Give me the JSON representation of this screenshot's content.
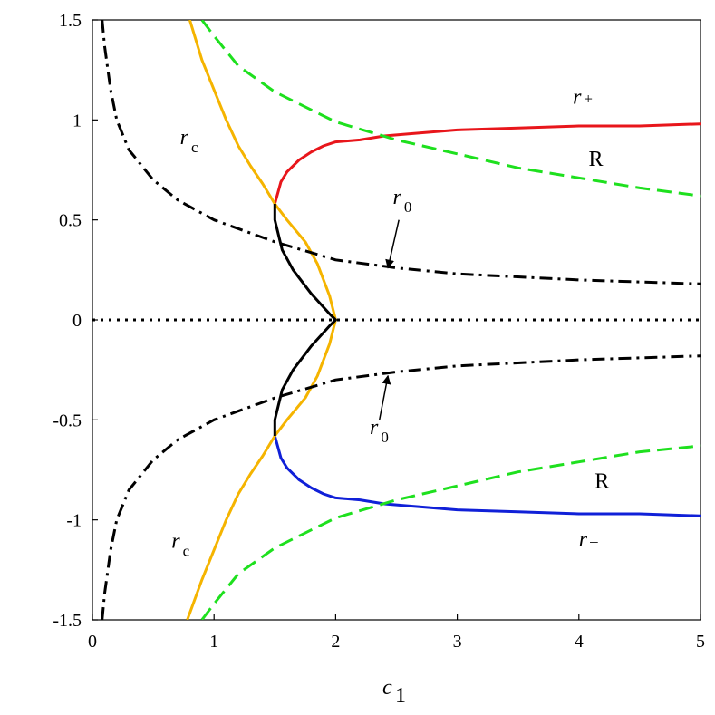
{
  "chart_data": {
    "type": "line",
    "title": "",
    "xlabel": "c",
    "xlabel_subscript": "1",
    "ylabel": "",
    "xlim": [
      0,
      5
    ],
    "ylim": [
      -1.5,
      1.5
    ],
    "grid": false,
    "legend": "none",
    "x_ticks": [
      {
        "value": 0,
        "label": "0"
      },
      {
        "value": 1,
        "label": "1"
      },
      {
        "value": 2,
        "label": "2"
      },
      {
        "value": 3,
        "label": "3"
      },
      {
        "value": 4,
        "label": "4"
      },
      {
        "value": 5,
        "label": "5"
      }
    ],
    "y_ticks": [
      {
        "value": 1.5,
        "label": "1.5"
      },
      {
        "value": 1,
        "label": "1"
      },
      {
        "value": 0.5,
        "label": "0.5"
      },
      {
        "value": 0,
        "label": "0"
      },
      {
        "value": -0.5,
        "label": "-0.5"
      },
      {
        "value": -1,
        "label": "-1"
      },
      {
        "value": -1.5,
        "label": "-1.5"
      }
    ],
    "series": [
      {
        "key": "r_plus",
        "color": "#e8161b",
        "style": "solid",
        "points": [
          [
            1.5,
            0.58
          ],
          [
            1.55,
            0.69
          ],
          [
            1.6,
            0.74
          ],
          [
            1.7,
            0.8
          ],
          [
            1.8,
            0.84
          ],
          [
            1.9,
            0.87
          ],
          [
            2.0,
            0.89
          ],
          [
            2.2,
            0.9
          ],
          [
            2.4,
            0.92
          ],
          [
            2.6,
            0.93
          ],
          [
            3.0,
            0.95
          ],
          [
            3.5,
            0.96
          ],
          [
            4.0,
            0.97
          ],
          [
            4.5,
            0.97
          ],
          [
            5.0,
            0.98
          ]
        ]
      },
      {
        "key": "r_minus",
        "color": "#1020d8",
        "style": "solid",
        "points": [
          [
            1.5,
            -0.58
          ],
          [
            1.55,
            -0.69
          ],
          [
            1.6,
            -0.74
          ],
          [
            1.7,
            -0.8
          ],
          [
            1.8,
            -0.84
          ],
          [
            1.9,
            -0.87
          ],
          [
            2.0,
            -0.89
          ],
          [
            2.2,
            -0.9
          ],
          [
            2.4,
            -0.92
          ],
          [
            2.6,
            -0.93
          ],
          [
            3.0,
            -0.95
          ],
          [
            3.5,
            -0.96
          ],
          [
            4.0,
            -0.97
          ],
          [
            4.5,
            -0.97
          ],
          [
            5.0,
            -0.98
          ]
        ]
      },
      {
        "key": "r_c",
        "color": "#f5b400",
        "style": "solid",
        "points": [
          [
            0.78,
            -1.5
          ],
          [
            0.9,
            -1.3
          ],
          [
            1.0,
            -1.15
          ],
          [
            1.1,
            -1.0
          ],
          [
            1.2,
            -0.87
          ],
          [
            1.3,
            -0.77
          ],
          [
            1.4,
            -0.68
          ],
          [
            1.5,
            -0.58
          ],
          [
            1.6,
            -0.5
          ],
          [
            1.75,
            -0.39
          ],
          [
            1.85,
            -0.28
          ],
          [
            1.95,
            -0.12
          ],
          [
            2.0,
            0.0
          ],
          [
            1.95,
            0.12
          ],
          [
            1.85,
            0.28
          ],
          [
            1.75,
            0.39
          ],
          [
            1.6,
            0.5
          ],
          [
            1.5,
            0.58
          ],
          [
            1.4,
            0.68
          ],
          [
            1.3,
            0.77
          ],
          [
            1.2,
            0.87
          ],
          [
            1.1,
            1.0
          ],
          [
            1.0,
            1.15
          ],
          [
            0.9,
            1.3
          ],
          [
            0.8,
            1.5
          ]
        ]
      },
      {
        "key": "r_0_middle",
        "color": "#000000",
        "style": "solid",
        "points": [
          [
            1.5,
            0.58
          ],
          [
            1.5,
            0.5
          ],
          [
            1.56,
            0.35
          ],
          [
            1.65,
            0.25
          ],
          [
            1.8,
            0.13
          ],
          [
            1.95,
            0.03
          ],
          [
            2.0,
            0.0
          ],
          [
            1.95,
            -0.03
          ],
          [
            1.8,
            -0.13
          ],
          [
            1.65,
            -0.25
          ],
          [
            1.56,
            -0.35
          ],
          [
            1.5,
            -0.5
          ],
          [
            1.5,
            -0.58
          ]
        ]
      },
      {
        "key": "R_upper",
        "color": "#1ee01e",
        "style": "dashed",
        "points": [
          [
            0.9,
            1.5
          ],
          [
            1.0,
            1.42
          ],
          [
            1.2,
            1.27
          ],
          [
            1.5,
            1.14
          ],
          [
            2.0,
            0.99
          ],
          [
            2.5,
            0.9
          ],
          [
            3.0,
            0.83
          ],
          [
            3.5,
            0.76
          ],
          [
            4.0,
            0.71
          ],
          [
            4.5,
            0.66
          ],
          [
            5.0,
            0.62
          ]
        ]
      },
      {
        "key": "R_lower",
        "color": "#1ee01e",
        "style": "dashed",
        "points": [
          [
            0.9,
            -1.5
          ],
          [
            1.0,
            -1.42
          ],
          [
            1.2,
            -1.27
          ],
          [
            1.5,
            -1.14
          ],
          [
            2.0,
            -0.99
          ],
          [
            2.5,
            -0.9
          ],
          [
            3.0,
            -0.83
          ],
          [
            3.5,
            -0.76
          ],
          [
            4.0,
            -0.71
          ],
          [
            4.5,
            -0.66
          ],
          [
            5.0,
            -0.63
          ]
        ]
      },
      {
        "key": "r0_upper",
        "color": "#000000",
        "style": "dashdot",
        "points": [
          [
            0.08,
            1.5
          ],
          [
            0.1,
            1.37
          ],
          [
            0.15,
            1.15
          ],
          [
            0.2,
            1.0
          ],
          [
            0.3,
            0.85
          ],
          [
            0.5,
            0.7
          ],
          [
            0.7,
            0.6
          ],
          [
            1.0,
            0.5
          ],
          [
            1.5,
            0.39
          ],
          [
            2.0,
            0.3
          ],
          [
            2.5,
            0.26
          ],
          [
            3.0,
            0.23
          ],
          [
            4.0,
            0.2
          ],
          [
            5.0,
            0.18
          ]
        ]
      },
      {
        "key": "r0_lower",
        "color": "#000000",
        "style": "dashdot",
        "points": [
          [
            0.08,
            -1.5
          ],
          [
            0.1,
            -1.37
          ],
          [
            0.15,
            -1.15
          ],
          [
            0.2,
            -1.0
          ],
          [
            0.3,
            -0.85
          ],
          [
            0.5,
            -0.7
          ],
          [
            0.7,
            -0.6
          ],
          [
            1.0,
            -0.5
          ],
          [
            1.5,
            -0.39
          ],
          [
            2.0,
            -0.3
          ],
          [
            2.5,
            -0.26
          ],
          [
            3.0,
            -0.23
          ],
          [
            4.0,
            -0.2
          ],
          [
            5.0,
            -0.18
          ]
        ]
      },
      {
        "key": "zero_line",
        "color": "#000000",
        "style": "dotted",
        "points": [
          [
            0,
            0
          ],
          [
            5,
            0
          ]
        ]
      }
    ],
    "annotations": [
      {
        "key": "r_plus",
        "main": "r",
        "sub": "+",
        "italic": true,
        "x": 3.95,
        "y": 1.08
      },
      {
        "key": "R_top",
        "main": "R",
        "sub": "",
        "italic": false,
        "x": 4.08,
        "y": 0.77
      },
      {
        "key": "r_c_top",
        "main": "r",
        "sub": "c",
        "italic": true,
        "x": 0.72,
        "y": 0.88
      },
      {
        "key": "r0_top",
        "main": "r",
        "sub": "0",
        "italic": true,
        "x": 2.47,
        "y": 0.58
      },
      {
        "key": "r0_bottom",
        "main": "r",
        "sub": "0",
        "italic": true,
        "x": 2.28,
        "y": -0.57
      },
      {
        "key": "R_bottom",
        "main": "R",
        "sub": "",
        "italic": false,
        "x": 4.13,
        "y": -0.84
      },
      {
        "key": "r_c_bottom",
        "main": "r",
        "sub": "c",
        "italic": true,
        "x": 0.65,
        "y": -1.14
      },
      {
        "key": "r_minus",
        "main": "r",
        "sub": "–",
        "italic": true,
        "x": 4.0,
        "y": -1.13
      }
    ],
    "arrows": [
      {
        "key": "arrow_upper",
        "from": [
          2.52,
          0.5
        ],
        "to": [
          2.43,
          0.26
        ]
      },
      {
        "key": "arrow_lower",
        "from": [
          2.36,
          -0.5
        ],
        "to": [
          2.43,
          -0.28
        ]
      }
    ]
  }
}
